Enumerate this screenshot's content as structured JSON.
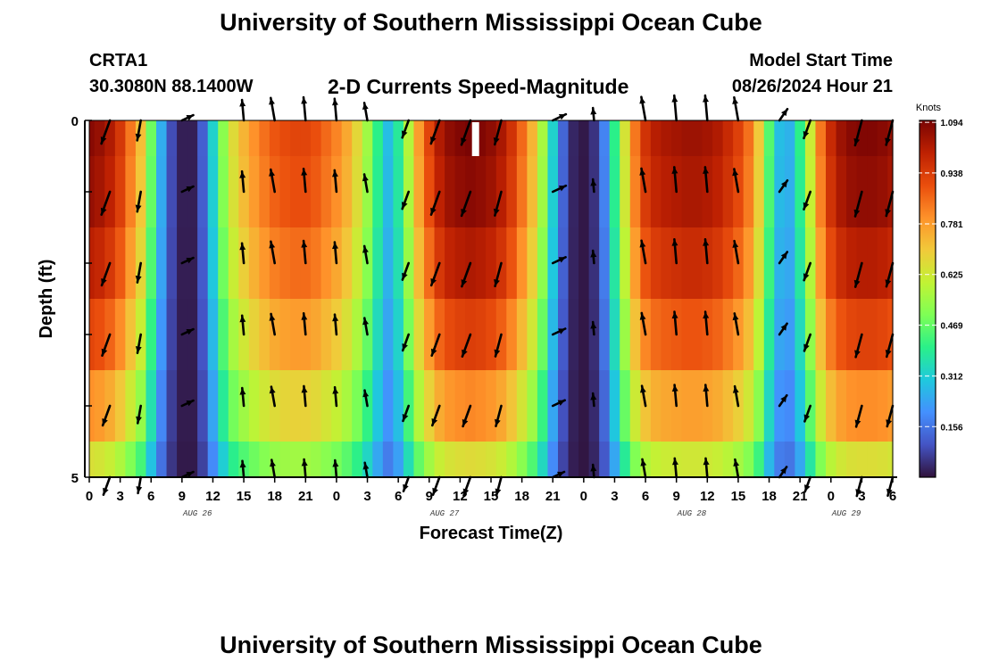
{
  "page": {
    "title": "University of Southern Mississippi Ocean Cube",
    "title_bottom": "University of Southern Mississippi Ocean Cube",
    "station_id": "CRTA1",
    "coordinates": "30.3080N  88.1400W",
    "subtitle": "2-D Currents Speed-Magnitude",
    "model_start_label": "Model Start Time",
    "model_start_value": "08/26/2024 Hour 21"
  },
  "colors": {
    "colormap": [
      "#30123b",
      "#4454c4",
      "#4490fe",
      "#1fc9dd",
      "#2af089",
      "#7eff55",
      "#c1f334",
      "#f1ca3a",
      "#fe922a",
      "#ea4e0d",
      "#be2102",
      "#7a0403"
    ]
  },
  "chart_data": {
    "type": "heatmap",
    "title": "2-D Currents Speed-Magnitude",
    "xlabel": "Forecast Time(Z)",
    "ylabel": "Depth (ft)",
    "ylim": [
      0,
      5
    ],
    "y_ticks": [
      "0",
      "5"
    ],
    "x_tick_labels": [
      "0",
      "3",
      "6",
      "9",
      "12",
      "15",
      "18",
      "21",
      "0",
      "3",
      "6",
      "9",
      "12",
      "15",
      "18",
      "21",
      "0",
      "3",
      "6",
      "9",
      "12",
      "15",
      "18",
      "21",
      "0",
      "3",
      "6"
    ],
    "date_labels": [
      {
        "text": "AUG 26",
        "hour": 10.5
      },
      {
        "text": "AUG 27",
        "hour": 34.5
      },
      {
        "text": "AUG 28",
        "hour": 58.5
      },
      {
        "text": "AUG 29",
        "hour": 73.5
      }
    ],
    "hours": [
      0,
      1,
      2,
      3,
      4,
      5,
      6,
      7,
      8,
      9,
      10,
      11,
      12,
      13,
      14,
      15,
      16,
      17,
      18,
      19,
      20,
      21,
      22,
      23,
      24,
      25,
      26,
      27,
      28,
      29,
      30,
      31,
      32,
      33,
      34,
      35,
      36,
      37,
      38,
      39,
      40,
      41,
      42,
      43,
      44,
      45,
      46,
      47,
      48,
      49,
      50,
      51,
      52,
      53,
      54,
      55,
      56,
      57,
      58,
      59,
      60,
      61,
      62,
      63,
      64,
      65,
      66,
      67,
      68,
      69,
      70,
      71,
      72,
      73,
      74,
      75,
      76,
      77,
      78
    ],
    "depth_layers_ft": [
      "0.0-0.5",
      "0.5-1.5",
      "1.5-2.5",
      "2.5-3.5",
      "3.5-4.5",
      "4.5-5.0"
    ],
    "surface_speed_knots": [
      1.08,
      1.06,
      1.02,
      0.95,
      0.84,
      0.72,
      0.48,
      0.25,
      0.09,
      0.02,
      0.02,
      0.12,
      0.32,
      0.52,
      0.66,
      0.74,
      0.8,
      0.85,
      0.89,
      0.91,
      0.92,
      0.92,
      0.9,
      0.86,
      0.82,
      0.76,
      0.67,
      0.55,
      0.4,
      0.28,
      0.38,
      0.58,
      0.78,
      0.92,
      1.02,
      1.07,
      1.09,
      1.1,
      1.09,
      1.07,
      1.03,
      0.96,
      0.86,
      0.74,
      0.56,
      0.32,
      0.13,
      0.03,
      0.01,
      0.05,
      0.18,
      0.4,
      0.64,
      0.84,
      0.96,
      1.01,
      1.03,
      1.04,
      1.05,
      1.05,
      1.04,
      1.02,
      0.98,
      0.93,
      0.85,
      0.7,
      0.45,
      0.28,
      0.26,
      0.4,
      0.62,
      0.84,
      0.98,
      1.05,
      1.08,
      1.09,
      1.09,
      1.08,
      1.06
    ],
    "layer_factors": [
      1.0,
      0.98,
      0.93,
      0.85,
      0.74,
      0.6
    ],
    "colorbar": {
      "label": "Knots",
      "min": 0.0,
      "max": 1.1,
      "ticks": [
        "0.156",
        "0.312",
        "0.469",
        "0.625",
        "0.781",
        "0.938",
        "1.094"
      ]
    },
    "vectors": {
      "hours": [
        2,
        5,
        9,
        15,
        18,
        21,
        24,
        27,
        31,
        34,
        37,
        40,
        45,
        49,
        54,
        57,
        60,
        63,
        67,
        70,
        75,
        78
      ],
      "surface_dir_deg": [
        200,
        190,
        65,
        355,
        350,
        355,
        355,
        350,
        200,
        200,
        200,
        195,
        65,
        355,
        350,
        355,
        355,
        350,
        35,
        200,
        195,
        195
      ]
    },
    "missing_mark_hour": 37.5
  }
}
